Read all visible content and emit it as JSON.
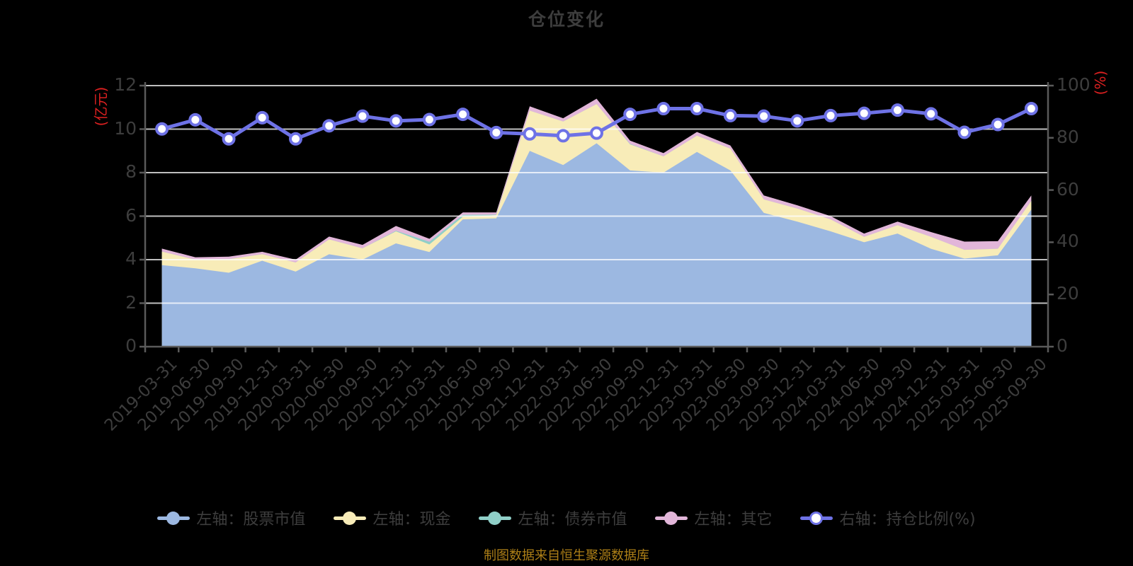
{
  "title": "仓位变化",
  "source_note": "制图数据来自恒生聚源数据库",
  "left_axis": {
    "name": "(亿元)",
    "ticks": [
      0,
      2,
      4,
      6,
      8,
      10,
      12
    ]
  },
  "right_axis": {
    "name": "(%)",
    "ticks": [
      0,
      20,
      40,
      60,
      80,
      100
    ]
  },
  "colors": {
    "background": "#000000",
    "title_text": "#3d3d3d",
    "tick_text": "#3d3d3d",
    "axis_line": "#5a5a5a",
    "gridline": "rgba(255,255,255,0.75)",
    "axis_unit_red": "#dc2020",
    "note_gold": "#ad7f17",
    "stock_blue": "#9cb8e1",
    "cash_yellow": "#f8ecb8",
    "bond_teal": "#90cfc8",
    "other_pink": "#e2b6d9",
    "ratio_purple": "#6e72e6"
  },
  "chart_data": {
    "type": "area",
    "subtype": "stacked-area-with-line",
    "title": "仓位变化",
    "xlabel": "",
    "ylabel_left": "(亿元)",
    "ylabel_right": "(%)",
    "left_ylim": [
      0,
      12
    ],
    "right_ylim": [
      0,
      100
    ],
    "grid": true,
    "legend_position": "bottom",
    "categories": [
      "2019-03-31",
      "2019-06-30",
      "2019-09-30",
      "2019-12-31",
      "2020-03-31",
      "2020-06-30",
      "2020-09-30",
      "2020-12-31",
      "2021-03-31",
      "2021-06-30",
      "2021-09-30",
      "2021-12-31",
      "2022-03-31",
      "2022-06-30",
      "2022-09-30",
      "2022-12-31",
      "2023-03-31",
      "2023-06-30",
      "2023-09-30",
      "2023-12-31",
      "2024-03-31",
      "2024-06-30",
      "2024-09-30",
      "2024-12-31",
      "2025-03-31",
      "2025-06-30",
      "2025-09-30"
    ],
    "series": [
      {
        "name": "左轴：股票市值",
        "type": "area-stack",
        "axis": "left",
        "color": "#9cb8e1",
        "values": [
          3.75,
          3.6,
          3.4,
          3.95,
          3.45,
          4.25,
          4.0,
          4.75,
          4.35,
          5.85,
          5.9,
          9.0,
          8.35,
          9.35,
          8.1,
          8.0,
          8.95,
          8.1,
          6.15,
          5.75,
          5.3,
          4.8,
          5.2,
          4.5,
          4.05,
          4.2,
          6.3
        ]
      },
      {
        "name": "左轴：现金",
        "type": "area-stack",
        "axis": "left",
        "color": "#f8ecb8",
        "values": [
          0.62,
          0.4,
          0.62,
          0.3,
          0.42,
          0.68,
          0.52,
          0.55,
          0.35,
          0.12,
          0.15,
          1.85,
          2.0,
          1.8,
          1.2,
          0.75,
          0.75,
          1.0,
          0.62,
          0.6,
          0.55,
          0.25,
          0.38,
          0.55,
          0.4,
          0.3,
          0.4
        ]
      },
      {
        "name": "左轴：债券市值",
        "type": "area-stack",
        "axis": "left",
        "color": "#90cfc8",
        "values": [
          0,
          0,
          0,
          0,
          0,
          0,
          0,
          0.03,
          0.12,
          0.09,
          0.02,
          0,
          0,
          0,
          0.02,
          0,
          0,
          0,
          0,
          0,
          0,
          0,
          0,
          0,
          0,
          0,
          0
        ]
      },
      {
        "name": "左轴：其它",
        "type": "area-stack",
        "axis": "left",
        "color": "#e2b6d9",
        "values": [
          0.14,
          0.11,
          0.12,
          0.11,
          0.13,
          0.13,
          0.16,
          0.22,
          0.14,
          0.11,
          0.1,
          0.2,
          0.15,
          0.25,
          0.15,
          0.15,
          0.17,
          0.15,
          0.18,
          0.15,
          0.15,
          0.15,
          0.17,
          0.22,
          0.38,
          0.35,
          0.25
        ]
      },
      {
        "name": "右轴：持仓比例(%)",
        "type": "line",
        "axis": "right",
        "color": "#6e72e6",
        "marker": "circle-white",
        "values": [
          83.4,
          86.9,
          79.6,
          87.7,
          79.6,
          84.6,
          88.3,
          86.5,
          87.0,
          89.0,
          82.0,
          81.5,
          80.8,
          81.8,
          89.0,
          91.2,
          91.2,
          88.5,
          88.3,
          86.5,
          88.5,
          89.4,
          90.6,
          89.2,
          82.1,
          85.1,
          91.2
        ]
      }
    ]
  }
}
